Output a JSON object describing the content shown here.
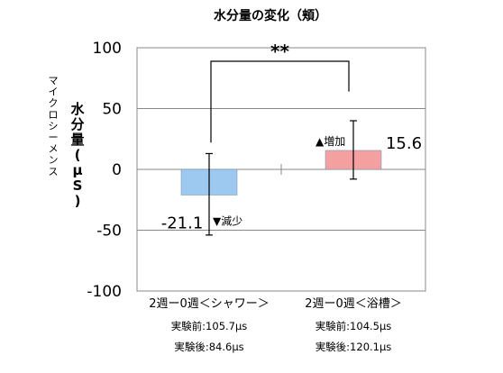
{
  "chart_data": {
    "type": "bar",
    "title": "水分量の変化（頬）",
    "ylabel_main": "水分量(μS)",
    "ylabel_sub": "マイクロシーメンス",
    "ylim": [
      -100,
      100
    ],
    "yticks": [
      100,
      50,
      0,
      -50,
      -100
    ],
    "grid": true,
    "categories": [
      "2週ー0週＜シャワー＞",
      "2週ー0週＜浴槽＞"
    ],
    "values": [
      -21.1,
      15.6
    ],
    "errors": [
      {
        "low": -54,
        "high": 13
      },
      {
        "low": -8,
        "high": 40
      }
    ],
    "value_labels": [
      "-21.1",
      "15.6"
    ],
    "annotations": [
      "▼減少",
      "▲増加"
    ],
    "colors": [
      "#9dc9f0",
      "#f5a0a0"
    ],
    "significance": "**",
    "notes": [
      [
        "実験前:105.7μs",
        "実験後:84.6μs"
      ],
      [
        "実験前:104.5μs",
        "実験後:120.1μs"
      ]
    ]
  }
}
